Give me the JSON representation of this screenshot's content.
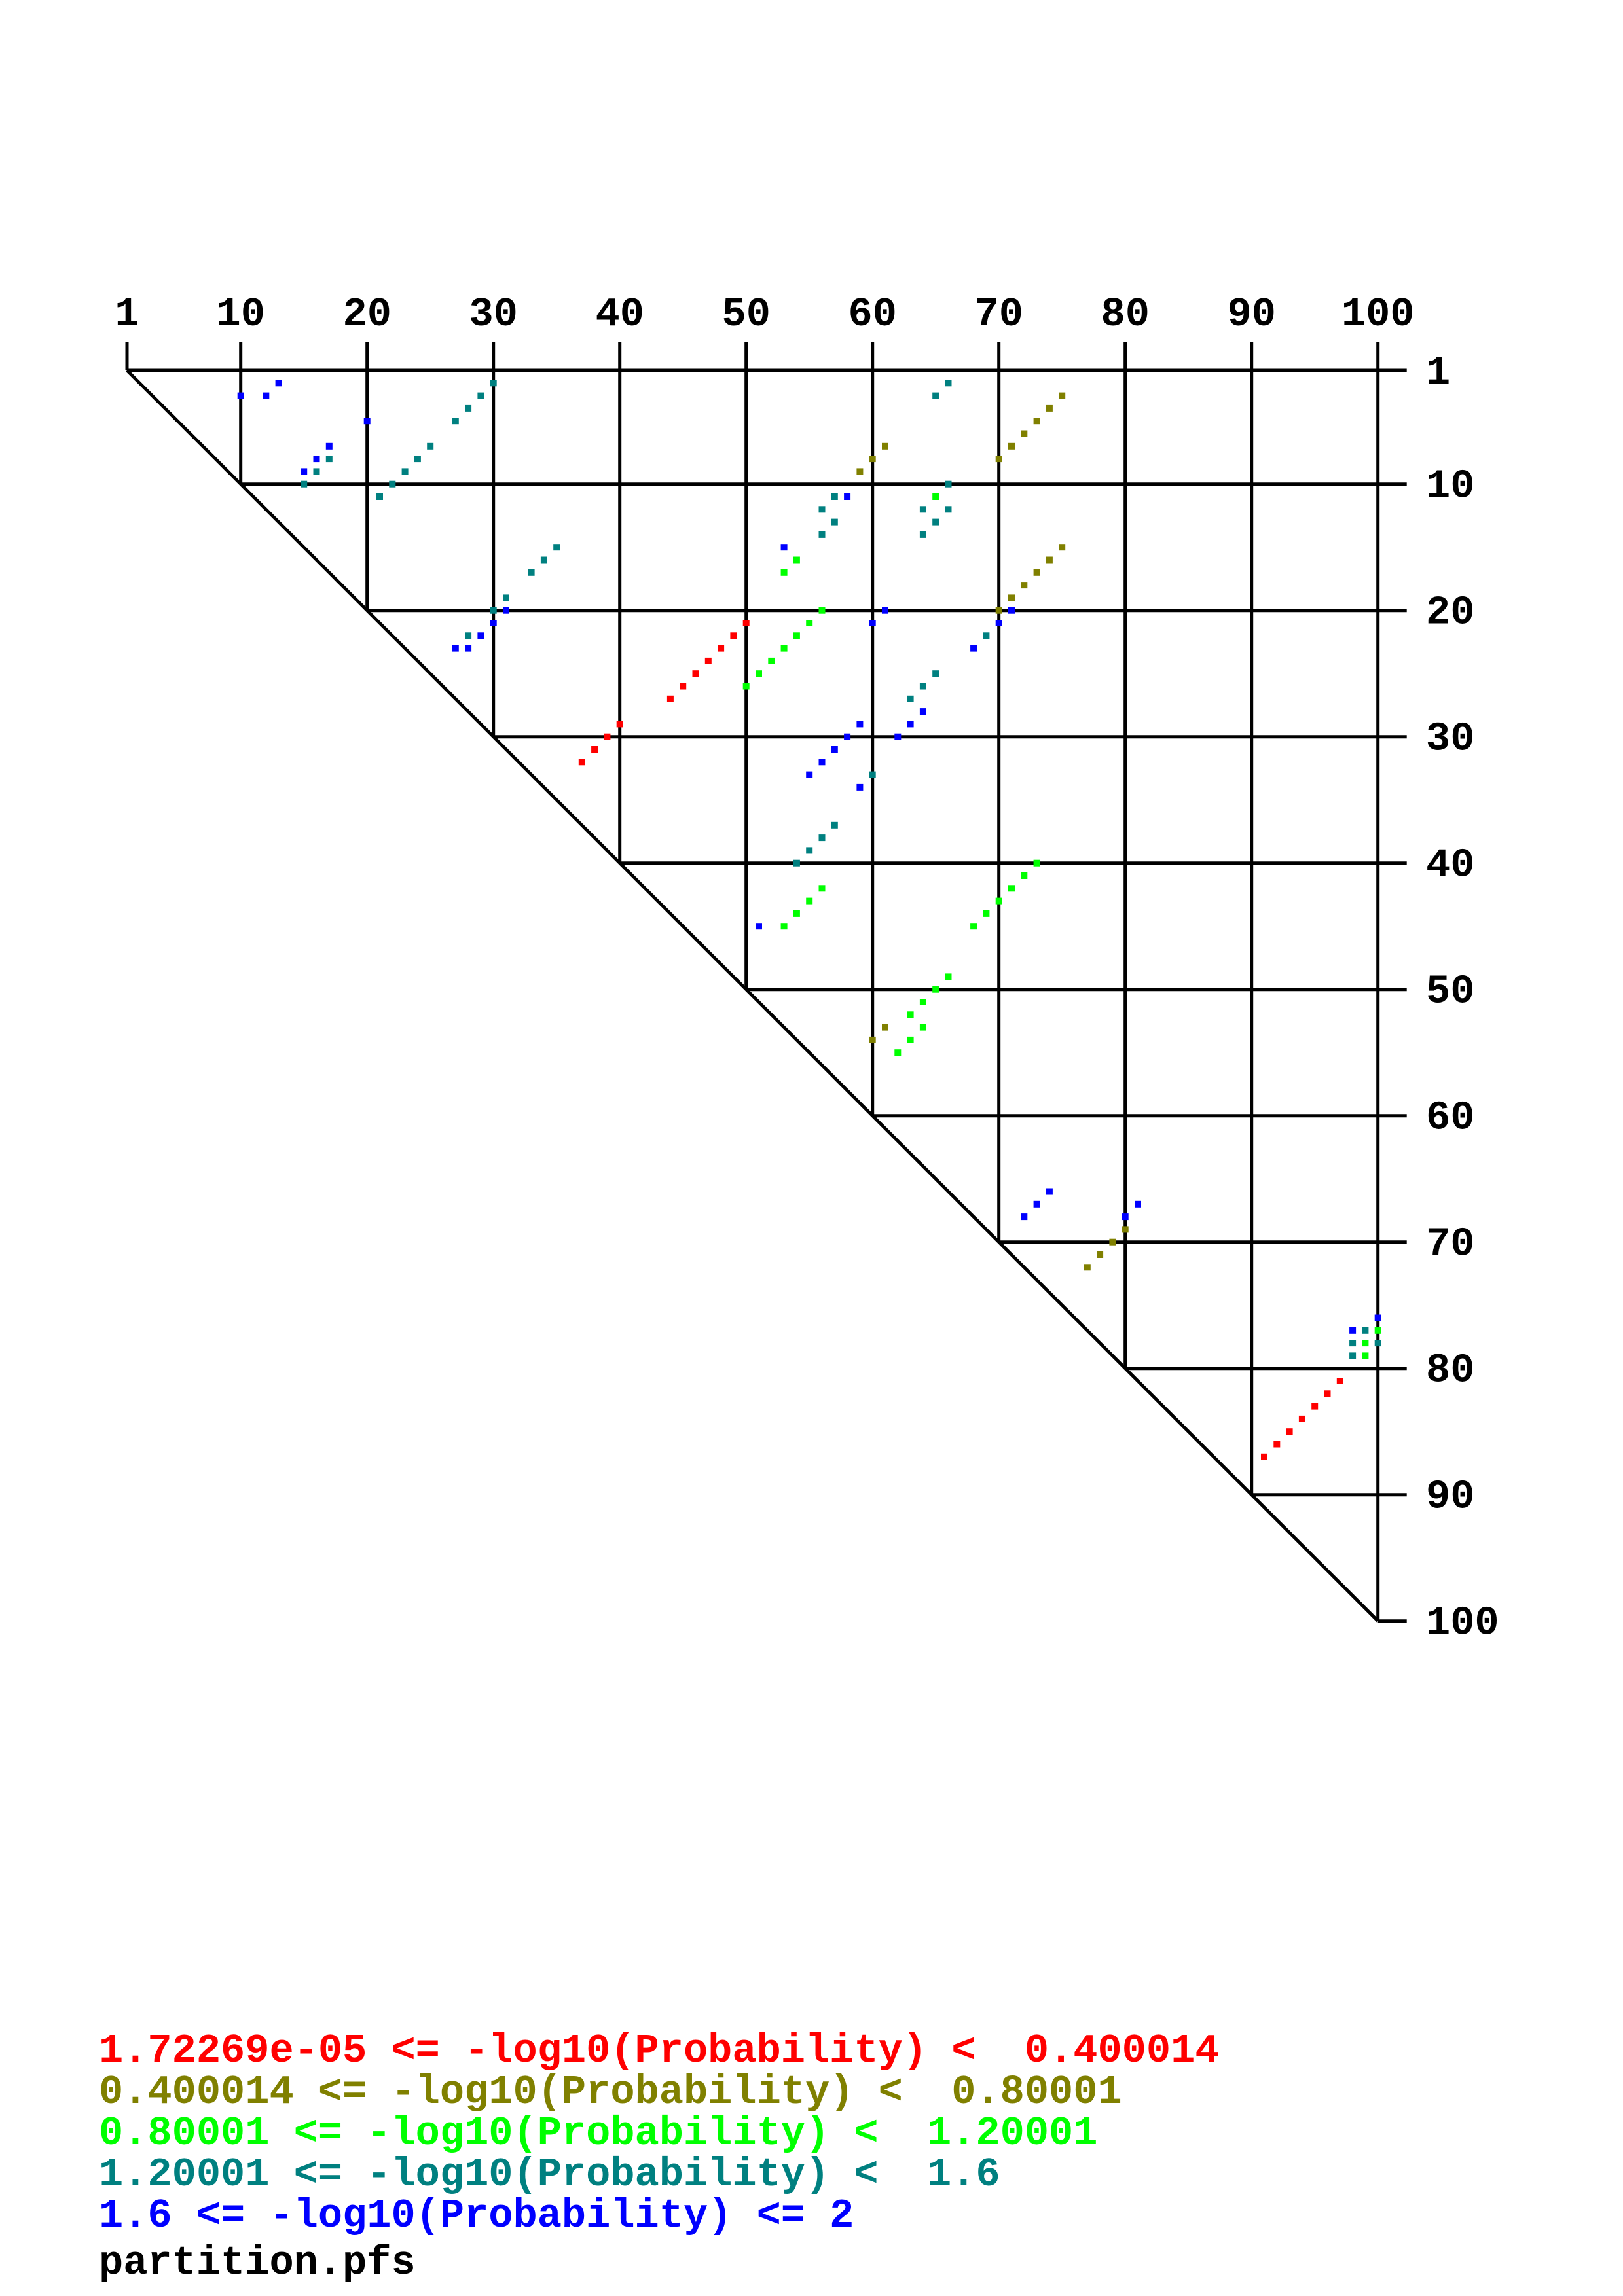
{
  "chart_data": {
    "type": "scatter",
    "subtype": "triangular dot plot (base-pair probability)",
    "x_axis": {
      "position": "top",
      "range": [
        1,
        100
      ],
      "ticks": [
        "1",
        "10",
        "20",
        "30",
        "40",
        "50",
        "60",
        "70",
        "80",
        "90",
        "100"
      ]
    },
    "y_axis": {
      "position": "right",
      "range": [
        1,
        100
      ],
      "ticks": [
        "1",
        "10",
        "20",
        "30",
        "40",
        "50",
        "60",
        "70",
        "80",
        "90",
        "100"
      ]
    },
    "grid": true,
    "legend_placement": "bottom-left",
    "legend": [
      {
        "label": "1.72269e-05 <= -log10(Probability) <  0.400014",
        "color": "#ff0000"
      },
      {
        "label": "0.400014 <= -log10(Probability) <  0.80001",
        "color": "#808000"
      },
      {
        "label": "0.80001 <= -log10(Probability) <  1.20001",
        "color": "#00ff00"
      },
      {
        "label": "1.20001 <= -log10(Probability) <  1.6",
        "color": "#008080"
      },
      {
        "label": "1.6 <= -log10(Probability) <= 2",
        "color": "#0000ff"
      }
    ],
    "filename": "partition.pfs",
    "point_format": "[i (row), j (column)]",
    "series": [
      {
        "legend_index": 0,
        "points": [
          [
            21,
            50
          ],
          [
            22,
            49
          ],
          [
            23,
            48
          ],
          [
            24,
            47
          ],
          [
            25,
            46
          ],
          [
            26,
            45
          ],
          [
            27,
            44
          ],
          [
            29,
            40
          ],
          [
            30,
            39
          ],
          [
            31,
            38
          ],
          [
            32,
            37
          ],
          [
            81,
            97
          ],
          [
            82,
            96
          ],
          [
            83,
            95
          ],
          [
            84,
            94
          ],
          [
            85,
            93
          ],
          [
            86,
            92
          ],
          [
            87,
            91
          ]
        ]
      },
      {
        "legend_index": 1,
        "points": [
          [
            3,
            75
          ],
          [
            4,
            74
          ],
          [
            5,
            73
          ],
          [
            6,
            72
          ],
          [
            7,
            71
          ],
          [
            8,
            70
          ],
          [
            7,
            61
          ],
          [
            8,
            60
          ],
          [
            9,
            59
          ],
          [
            15,
            75
          ],
          [
            16,
            74
          ],
          [
            17,
            73
          ],
          [
            18,
            72
          ],
          [
            19,
            71
          ],
          [
            20,
            70
          ],
          [
            53,
            61
          ],
          [
            54,
            60
          ],
          [
            69,
            80
          ],
          [
            70,
            79
          ],
          [
            71,
            78
          ],
          [
            72,
            77
          ]
        ]
      },
      {
        "legend_index": 2,
        "points": [
          [
            11,
            65
          ],
          [
            16,
            54
          ],
          [
            17,
            53
          ],
          [
            20,
            56
          ],
          [
            21,
            55
          ],
          [
            22,
            54
          ],
          [
            23,
            53
          ],
          [
            24,
            52
          ],
          [
            25,
            51
          ],
          [
            26,
            50
          ],
          [
            42,
            56
          ],
          [
            43,
            55
          ],
          [
            44,
            54
          ],
          [
            45,
            53
          ],
          [
            40,
            73
          ],
          [
            41,
            72
          ],
          [
            42,
            71
          ],
          [
            43,
            70
          ],
          [
            44,
            69
          ],
          [
            45,
            68
          ],
          [
            49,
            66
          ],
          [
            50,
            65
          ],
          [
            51,
            64
          ],
          [
            52,
            63
          ],
          [
            53,
            64
          ],
          [
            54,
            63
          ],
          [
            55,
            62
          ],
          [
            77,
            100
          ],
          [
            78,
            99
          ],
          [
            79,
            99
          ]
        ]
      },
      {
        "legend_index": 3,
        "points": [
          [
            8,
            17
          ],
          [
            9,
            16
          ],
          [
            10,
            15
          ],
          [
            2,
            30
          ],
          [
            3,
            29
          ],
          [
            4,
            28
          ],
          [
            5,
            27
          ],
          [
            7,
            25
          ],
          [
            8,
            24
          ],
          [
            9,
            23
          ],
          [
            10,
            22
          ],
          [
            11,
            21
          ],
          [
            15,
            35
          ],
          [
            16,
            34
          ],
          [
            17,
            33
          ],
          [
            19,
            31
          ],
          [
            20,
            30
          ],
          [
            22,
            28
          ],
          [
            2,
            66
          ],
          [
            3,
            65
          ],
          [
            10,
            66
          ],
          [
            11,
            57
          ],
          [
            12,
            56
          ],
          [
            13,
            57
          ],
          [
            14,
            56
          ],
          [
            12,
            64
          ],
          [
            12,
            66
          ],
          [
            13,
            65
          ],
          [
            14,
            64
          ],
          [
            22,
            69
          ],
          [
            25,
            65
          ],
          [
            26,
            64
          ],
          [
            27,
            63
          ],
          [
            33,
            60
          ],
          [
            37,
            57
          ],
          [
            38,
            56
          ],
          [
            39,
            55
          ],
          [
            40,
            54
          ],
          [
            77,
            99
          ],
          [
            78,
            98
          ],
          [
            78,
            100
          ],
          [
            79,
            98
          ]
        ]
      },
      {
        "legend_index": 4,
        "points": [
          [
            2,
            13
          ],
          [
            3,
            12
          ],
          [
            3,
            10
          ],
          [
            5,
            20
          ],
          [
            7,
            17
          ],
          [
            8,
            16
          ],
          [
            9,
            15
          ],
          [
            20,
            31
          ],
          [
            21,
            30
          ],
          [
            22,
            29
          ],
          [
            23,
            27
          ],
          [
            23,
            28
          ],
          [
            11,
            58
          ],
          [
            15,
            53
          ],
          [
            20,
            61
          ],
          [
            21,
            60
          ],
          [
            20,
            71
          ],
          [
            21,
            70
          ],
          [
            23,
            68
          ],
          [
            28,
            64
          ],
          [
            29,
            63
          ],
          [
            30,
            62
          ],
          [
            29,
            59
          ],
          [
            30,
            58
          ],
          [
            31,
            57
          ],
          [
            32,
            56
          ],
          [
            33,
            55
          ],
          [
            34,
            59
          ],
          [
            45,
            51
          ],
          [
            66,
            74
          ],
          [
            67,
            73
          ],
          [
            68,
            72
          ],
          [
            67,
            81
          ],
          [
            68,
            80
          ],
          [
            76,
            100
          ],
          [
            77,
            98
          ]
        ]
      }
    ]
  }
}
